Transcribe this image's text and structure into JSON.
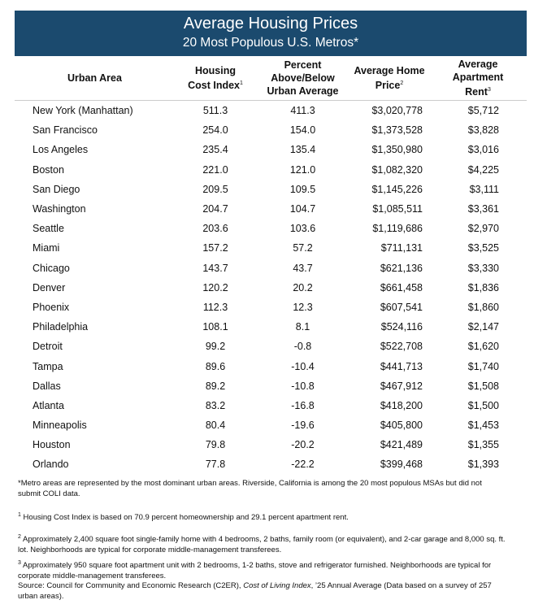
{
  "header": {
    "title": "Average Housing Prices",
    "subtitle": "20 Most Populous U.S. Metros*"
  },
  "table": {
    "columns": [
      {
        "text": "Urban Area"
      },
      {
        "text": "Housing Cost Index",
        "note": "1"
      },
      {
        "text": "Percent Above/Below Urban Average"
      },
      {
        "text": "Average Home Price",
        "note": "2"
      },
      {
        "text": "Average Apartment Rent",
        "note": "3"
      }
    ],
    "rows": [
      [
        "New York (Manhattan)",
        "511.3",
        "411.3",
        "$3,020,778",
        "$5,712"
      ],
      [
        "San Francisco",
        "254.0",
        "154.0",
        "$1,373,528",
        "$3,828"
      ],
      [
        "Los Angeles",
        "235.4",
        "135.4",
        "$1,350,980",
        "$3,016"
      ],
      [
        "Boston",
        "221.0",
        "121.0",
        "$1,082,320",
        "$4,225"
      ],
      [
        "San Diego",
        "209.5",
        "109.5",
        "$1,145,226",
        "$3,111"
      ],
      [
        "Washington",
        "204.7",
        "104.7",
        "$1,085,511",
        "$3,361"
      ],
      [
        "Seattle",
        "203.6",
        "103.6",
        "$1,119,686",
        "$2,970"
      ],
      [
        "Miami",
        "157.2",
        "57.2",
        "$711,131",
        "$3,525"
      ],
      [
        "Chicago",
        "143.7",
        "43.7",
        "$621,136",
        "$3,330"
      ],
      [
        "Denver",
        "120.2",
        "20.2",
        "$661,458",
        "$1,836"
      ],
      [
        "Phoenix",
        "112.3",
        "12.3",
        "$607,541",
        "$1,860"
      ],
      [
        "Philadelphia",
        "108.1",
        "8.1",
        "$524,116",
        "$2,147"
      ],
      [
        "Detroit",
        "99.2",
        "-0.8",
        "$522,708",
        "$1,620"
      ],
      [
        "Tampa",
        "89.6",
        "-10.4",
        "$441,713",
        "$1,740"
      ],
      [
        "Dallas",
        "89.2",
        "-10.8",
        "$467,912",
        "$1,508"
      ],
      [
        "Atlanta",
        "83.2",
        "-16.8",
        "$418,200",
        "$1,500"
      ],
      [
        "Minneapolis",
        "80.4",
        "-19.6",
        "$405,800",
        "$1,453"
      ],
      [
        "Houston",
        "79.8",
        "-20.2",
        "$421,489",
        "$1,355"
      ],
      [
        "Orlando",
        "77.8",
        "-22.2",
        "$399,468",
        "$1,393"
      ]
    ]
  },
  "footnotes": [
    {
      "marker": "*",
      "text": "Metro areas are represented by the most dominant urban areas. Riverside, California is among the 20 most populous MSAs but did not submit COLI data."
    },
    {
      "marker": "1",
      "text": "Housing Cost Index is based on 70.9 percent homeownership and 29.1 percent apartment rent."
    },
    {
      "marker": "2",
      "text": "Approximately 2,400 square foot single-family home with 4 bedrooms, 2 baths, family room (or equivalent), and 2-car garage and 8,000 sq. ft. lot. Neighborhoods are typical for corporate middle-management transferees."
    },
    {
      "marker": "3",
      "text": "Approximately 950 square foot apartment unit with 2 bedrooms, 1-2 baths, stove and refrigerator furnished. Neighborhoods are typical for corporate middle-management transferees."
    }
  ],
  "source": {
    "before": "Source: Council for Community and Economic Research (C2ER), ",
    "italic": "Cost of Living Index",
    "after": ", ’25 Annual Average (Data based on a survey of 257 urban areas)."
  }
}
